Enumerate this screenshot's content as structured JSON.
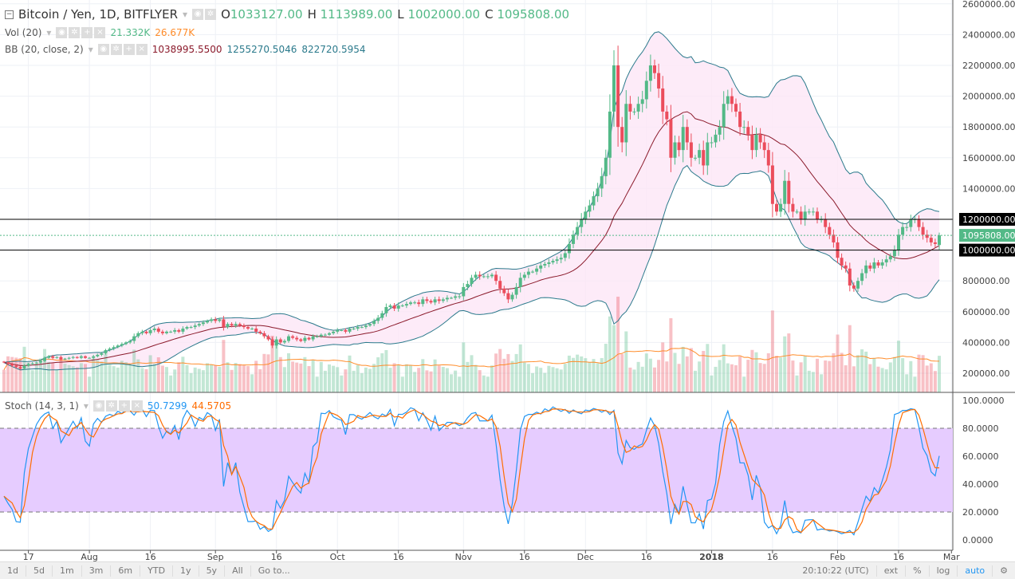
{
  "legend": {
    "symbol": "Bitcoin / Yen, 1D, BITFLYER",
    "o_label": "O",
    "o": "1033127.00",
    "h_label": "H",
    "h": "1113989.00",
    "l_label": "L",
    "l": "1002000.00",
    "c_label": "C",
    "c": "1095808.00",
    "vol_label": "Vol (20)",
    "vol_value": "21.332K",
    "vol_ma": "26.677K",
    "bb_label": "BB (20, close, 2)",
    "bb_mid": "1038995.5500",
    "bb_upper": "1255270.5046",
    "bb_lower": "822720.5954",
    "stoch_label": "Stoch (14, 3, 1)",
    "stoch_k": "50.7299",
    "stoch_d": "44.5705"
  },
  "colors": {
    "up": "#53b987",
    "down": "#eb4d5c",
    "bb_mid": "#8b1a2b",
    "bb_band": "#2b7a8c",
    "bb_fill": "#fce6f6",
    "vol_ma": "#ff8c2a",
    "stoch_k": "#2196f3",
    "stoch_d": "#ff6d00",
    "stoch_fill": "#e6ccff"
  },
  "chart_data": {
    "type": "candlestick",
    "start_date": "2017-07-11",
    "closes": [
      270000,
      260000,
      250000,
      240000,
      230000,
      250000,
      260000,
      265000,
      270000,
      280000,
      300000,
      310000,
      300000,
      305000,
      290000,
      295000,
      300000,
      305000,
      300000,
      310000,
      300000,
      300000,
      310000,
      320000,
      330000,
      350000,
      360000,
      370000,
      380000,
      390000,
      400000,
      410000,
      440000,
      460000,
      470000,
      460000,
      480000,
      490000,
      470000,
      460000,
      470000,
      470000,
      480000,
      470000,
      490000,
      500000,
      500000,
      510000,
      520000,
      530000,
      540000,
      550000,
      540000,
      550000,
      500000,
      520000,
      510000,
      520000,
      510000,
      500000,
      490000,
      490000,
      470000,
      460000,
      440000,
      420000,
      380000,
      420000,
      400000,
      410000,
      440000,
      430000,
      420000,
      410000,
      430000,
      420000,
      440000,
      440000,
      450000,
      450000,
      460000,
      470000,
      480000,
      480000,
      470000,
      490000,
      490000,
      500000,
      500000,
      510000,
      520000,
      540000,
      560000,
      590000,
      630000,
      640000,
      620000,
      640000,
      640000,
      650000,
      660000,
      660000,
      650000,
      680000,
      670000,
      660000,
      680000,
      670000,
      680000,
      690000,
      690000,
      700000,
      700000,
      760000,
      780000,
      820000,
      840000,
      830000,
      830000,
      830000,
      840000,
      800000,
      750000,
      720000,
      680000,
      710000,
      760000,
      820000,
      840000,
      860000,
      860000,
      880000,
      900000,
      910000,
      920000,
      930000,
      940000,
      950000,
      980000,
      1040000,
      1100000,
      1150000,
      1200000,
      1250000,
      1290000,
      1350000,
      1400000,
      1480000,
      1600000,
      1900000,
      2200000,
      1800000,
      1700000,
      1950000,
      1900000,
      1900000,
      1950000,
      1980000,
      2100000,
      2200000,
      2150000,
      2050000,
      1900000,
      1850000,
      1600000,
      1700000,
      1650000,
      1800000,
      1700000,
      1600000,
      1600000,
      1650000,
      1550000,
      1700000,
      1700000,
      1750000,
      1800000,
      1950000,
      2000000,
      1950000,
      1900000,
      1800000,
      1800000,
      1750000,
      1650000,
      1750000,
      1700000,
      1650000,
      1550000,
      1300000,
      1250000,
      1300000,
      1450000,
      1300000,
      1250000,
      1250000,
      1200000,
      1250000,
      1250000,
      1250000,
      1200000,
      1200000,
      1150000,
      1100000,
      1050000,
      950000,
      900000,
      880000,
      770000,
      750000,
      800000,
      850000,
      900000,
      880000,
      920000,
      900000,
      920000,
      940000,
      960000,
      1000000,
      1100000,
      1150000,
      1150000,
      1200000,
      1200000,
      1150000,
      1100000,
      1080000,
      1050000,
      1040000,
      1095808
    ],
    "last": {
      "open": 1033127,
      "high": 1113989,
      "low": 1002000,
      "close": 1095808
    },
    "indicators": [
      "Volume (20)",
      "Bollinger Bands (20, close, 2)",
      "Stochastic (14, 3, 1)"
    ],
    "price_axis": {
      "ticks": [
        "2600000.00",
        "2400000.00",
        "2200000.00",
        "2000000.00",
        "1800000.00",
        "1600000.00",
        "1400000.00",
        "1200000.00",
        "1000000.00",
        "800000.00",
        "600000.00",
        "400000.00",
        "200000.00"
      ],
      "ylim": [
        100000,
        2650000
      ]
    },
    "horizontal_lines": [
      {
        "value": 1200000,
        "label": "1200000.00",
        "color": "#000000"
      },
      {
        "value": 1000000,
        "label": "1000000.00",
        "color": "#000000"
      },
      {
        "value": 1095808,
        "label": "1095808.00",
        "color": "#53b987",
        "style": "dotted"
      }
    ],
    "stoch_axis": {
      "ticks": [
        "100.0000",
        "80.0000",
        "60.0000",
        "40.0000",
        "20.0000",
        "0.0000"
      ],
      "bands": [
        20,
        80
      ]
    },
    "x_ticks": [
      {
        "date": "2017-07-17",
        "label": "17"
      },
      {
        "date": "2017-08-01",
        "label": "Aug"
      },
      {
        "date": "2017-08-16",
        "label": "16"
      },
      {
        "date": "2017-09-01",
        "label": "Sep"
      },
      {
        "date": "2017-09-16",
        "label": "16"
      },
      {
        "date": "2017-10-01",
        "label": "Oct"
      },
      {
        "date": "2017-10-16",
        "label": "16"
      },
      {
        "date": "2017-11-01",
        "label": "Nov"
      },
      {
        "date": "2017-11-16",
        "label": "16"
      },
      {
        "date": "2017-12-01",
        "label": "Dec"
      },
      {
        "date": "2017-12-16",
        "label": "16"
      },
      {
        "date": "2018-01-01",
        "label": "2018"
      },
      {
        "date": "2018-01-16",
        "label": "16"
      },
      {
        "date": "2018-02-01",
        "label": "Feb"
      },
      {
        "date": "2018-02-16",
        "label": "16"
      },
      {
        "date": "2018-03-01",
        "label": "Mar"
      }
    ],
    "grid": true
  },
  "toolbar": {
    "ranges": [
      "1d",
      "5d",
      "1m",
      "3m",
      "6m",
      "YTD",
      "1y",
      "5y",
      "All",
      "Go to..."
    ],
    "time": "20:10:22 (UTC)",
    "ext": "ext",
    "pct": "%",
    "log": "log",
    "auto": "auto"
  }
}
